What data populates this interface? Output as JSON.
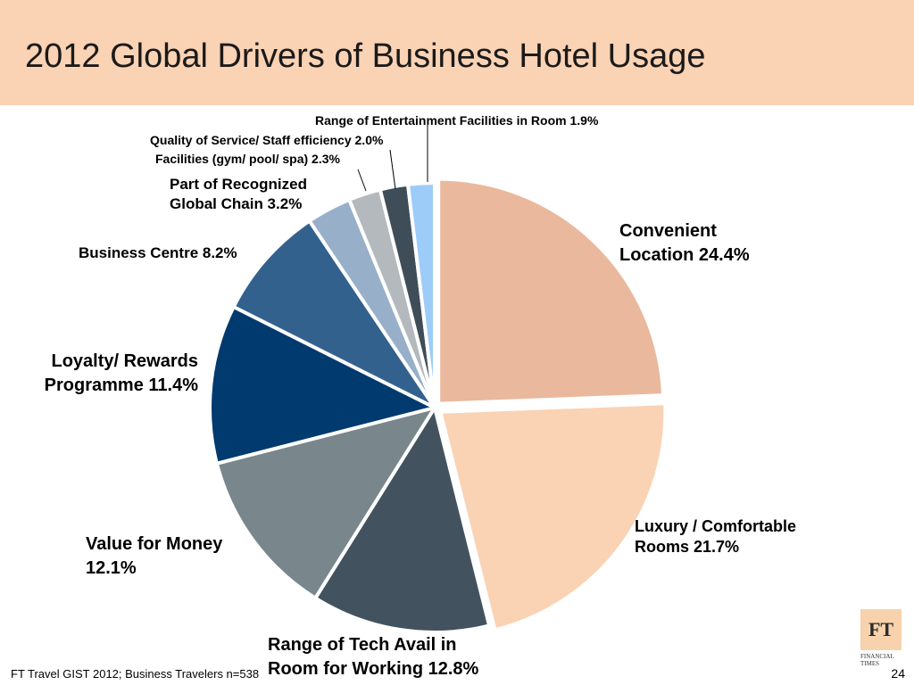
{
  "header": {
    "title": "2012 Global Drivers of Business Hotel Usage"
  },
  "footer": {
    "source": "FT Travel GIST 2012; Business Travelers n=538",
    "page_number": "24"
  },
  "logo": {
    "mark": "FT",
    "line1": "FINANCIAL",
    "line2": "TIMES"
  },
  "chart_data": {
    "type": "pie",
    "title": "2012 Global Drivers of Business Hotel Usage",
    "unit": "%",
    "slices": [
      {
        "label": "Convenient Location 24.4%",
        "lines": [
          "Convenient",
          "Location 24.4%"
        ],
        "value": 24.4,
        "color": "#eab89c"
      },
      {
        "label": "Luxury / Comfortable Rooms 21.7%",
        "lines": [
          "Luxury / Comfortable",
          "Rooms 21.7%"
        ],
        "value": 21.7,
        "color": "#fad2b4"
      },
      {
        "label": "Range of Tech Avail in Room for Working 12.8%",
        "lines": [
          "Range of Tech Avail in",
          "Room for Working  12.8%"
        ],
        "value": 12.8,
        "color": "#42525e"
      },
      {
        "label": "Value for Money 12.1%",
        "lines": [
          "Value for Money",
          "12.1%"
        ],
        "value": 12.1,
        "color": "#79878d"
      },
      {
        "label": "Loyalty/ Rewards Programme 11.4%",
        "lines": [
          "Loyalty/ Rewards",
          "Programme 11.4%"
        ],
        "value": 11.4,
        "color": "#003a6e"
      },
      {
        "label": "Business Centre 8.2%",
        "lines": [
          "Business Centre 8.2%"
        ],
        "value": 8.2,
        "color": "#33618e"
      },
      {
        "label": "Part of Recognized Global Chain 3.2%",
        "lines": [
          "Part of Recognized",
          "Global Chain 3.2%"
        ],
        "value": 3.2,
        "color": "#97afc9"
      },
      {
        "label": "Facilities (gym/ pool/ spa) 2.3%",
        "lines": [
          "Facilities (gym/ pool/ spa) 2.3%"
        ],
        "value": 2.3,
        "color": "#b4b9bd"
      },
      {
        "label": "Quality of Service/ Staff efficiency 2.0%",
        "lines": [
          "Quality of Service/ Staff efficiency 2.0%"
        ],
        "value": 2.0,
        "color": "#3f4d58"
      },
      {
        "label": "Range of Entertainment Facilities in Room 1.9%",
        "lines": [
          "Range of Entertainment Facilities in Room 1.9%"
        ],
        "value": 1.9,
        "color": "#9dccf9"
      }
    ]
  }
}
